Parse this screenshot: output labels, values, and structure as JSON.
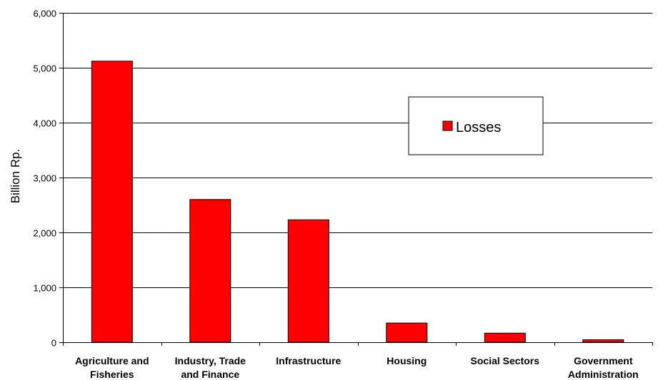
{
  "chart_data": {
    "type": "bar",
    "title": "",
    "xlabel": "",
    "ylabel": "Billion Rp.",
    "ylim": [
      0,
      6000
    ],
    "yticks": [
      0,
      1000,
      2000,
      3000,
      4000,
      5000,
      6000
    ],
    "ytick_labels": [
      "0",
      "1,000",
      "2,000",
      "3,000",
      "4,000",
      "5,000",
      "6,000"
    ],
    "grid": "horizontal",
    "legend_position": "upper-right",
    "categories": [
      [
        "Agriculture and",
        "Fisheries"
      ],
      [
        "Industry, Trade",
        "and Finance"
      ],
      [
        "Infrastructure"
      ],
      [
        "Housing"
      ],
      [
        "Social Sectors"
      ],
      [
        "Government",
        "Administration"
      ]
    ],
    "series": [
      {
        "name": "Losses",
        "color": "#ff0000",
        "values": [
          5120,
          2600,
          2230,
          350,
          165,
          45
        ]
      }
    ]
  }
}
